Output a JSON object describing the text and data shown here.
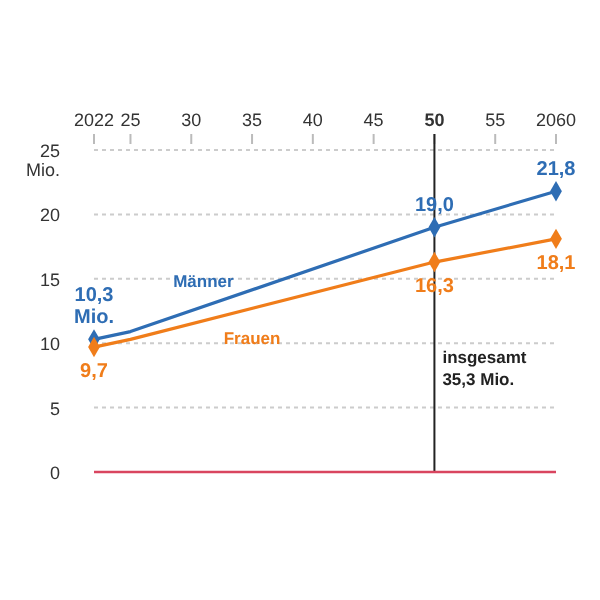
{
  "chart_data": {
    "type": "line",
    "x": [
      2022,
      2025,
      2050,
      2060
    ],
    "xlim": [
      2022,
      2060
    ],
    "xticks": [
      2022,
      {
        "value": 2025,
        "label": "25"
      },
      {
        "value": 2030,
        "label": "30"
      },
      {
        "value": 2035,
        "label": "35"
      },
      {
        "value": 2040,
        "label": "40"
      },
      {
        "value": 2045,
        "label": "45"
      },
      {
        "value": 2050,
        "label": "50"
      },
      {
        "value": 2055,
        "label": "55"
      },
      2060
    ],
    "ylim": [
      0,
      25
    ],
    "yticks": [
      0,
      5,
      10,
      15,
      20,
      25
    ],
    "ylabel": "Mio.",
    "grid": "y",
    "marker": "diamond",
    "line_style": "solid",
    "series": [
      {
        "name": "Männer",
        "color": "#2e6db4",
        "values": [
          10.3,
          10.9,
          19.0,
          21.8
        ],
        "value_labels": [
          "10,3 Mio.",
          null,
          "19,0",
          "21,8"
        ]
      },
      {
        "name": "Frauen",
        "color": "#f07d1a",
        "values": [
          9.7,
          10.3,
          16.3,
          18.1
        ],
        "value_labels": [
          "9,7",
          null,
          "16,3",
          "18,1"
        ]
      }
    ],
    "ref_lines": [
      {
        "axis": "x",
        "value": 2050,
        "label": "insgesamt 35,3 Mio.",
        "color": "#222222"
      },
      {
        "axis": "y",
        "value": 0,
        "color": "#d9455f"
      }
    ]
  }
}
